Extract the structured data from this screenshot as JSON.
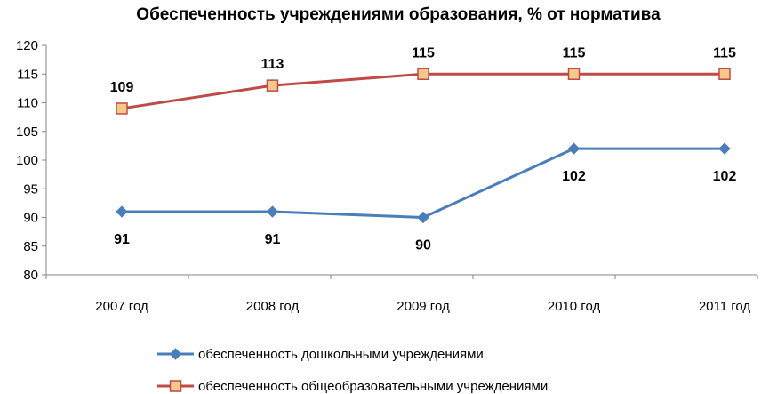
{
  "chart_data": {
    "type": "line",
    "title": "Обеспеченность учреждениями образования, % от норматива",
    "categories": [
      "2007 год",
      "2008 год",
      "2009 год",
      "2010 год",
      "2011 год"
    ],
    "ylim": [
      80,
      120
    ],
    "yticks": [
      80,
      85,
      90,
      95,
      100,
      105,
      110,
      115,
      120
    ],
    "grid": false,
    "legend_position": "bottom",
    "series": [
      {
        "name": "обеспеченность дошкольными учреждениями",
        "values": [
          91,
          91,
          90,
          102,
          102
        ],
        "labels": [
          "91",
          "91",
          "90",
          "102",
          "102"
        ],
        "color": "#4a7ebb",
        "marker": "diamond",
        "label_position": "below"
      },
      {
        "name": "обеспеченность общеобразовательными учреждениями",
        "values": [
          109,
          113,
          115,
          115,
          115
        ],
        "labels": [
          "109",
          "113",
          "115",
          "115",
          "115"
        ],
        "color": "#be4b48",
        "marker_fill": "#f5c98a",
        "marker": "square",
        "label_position": "above"
      }
    ]
  }
}
